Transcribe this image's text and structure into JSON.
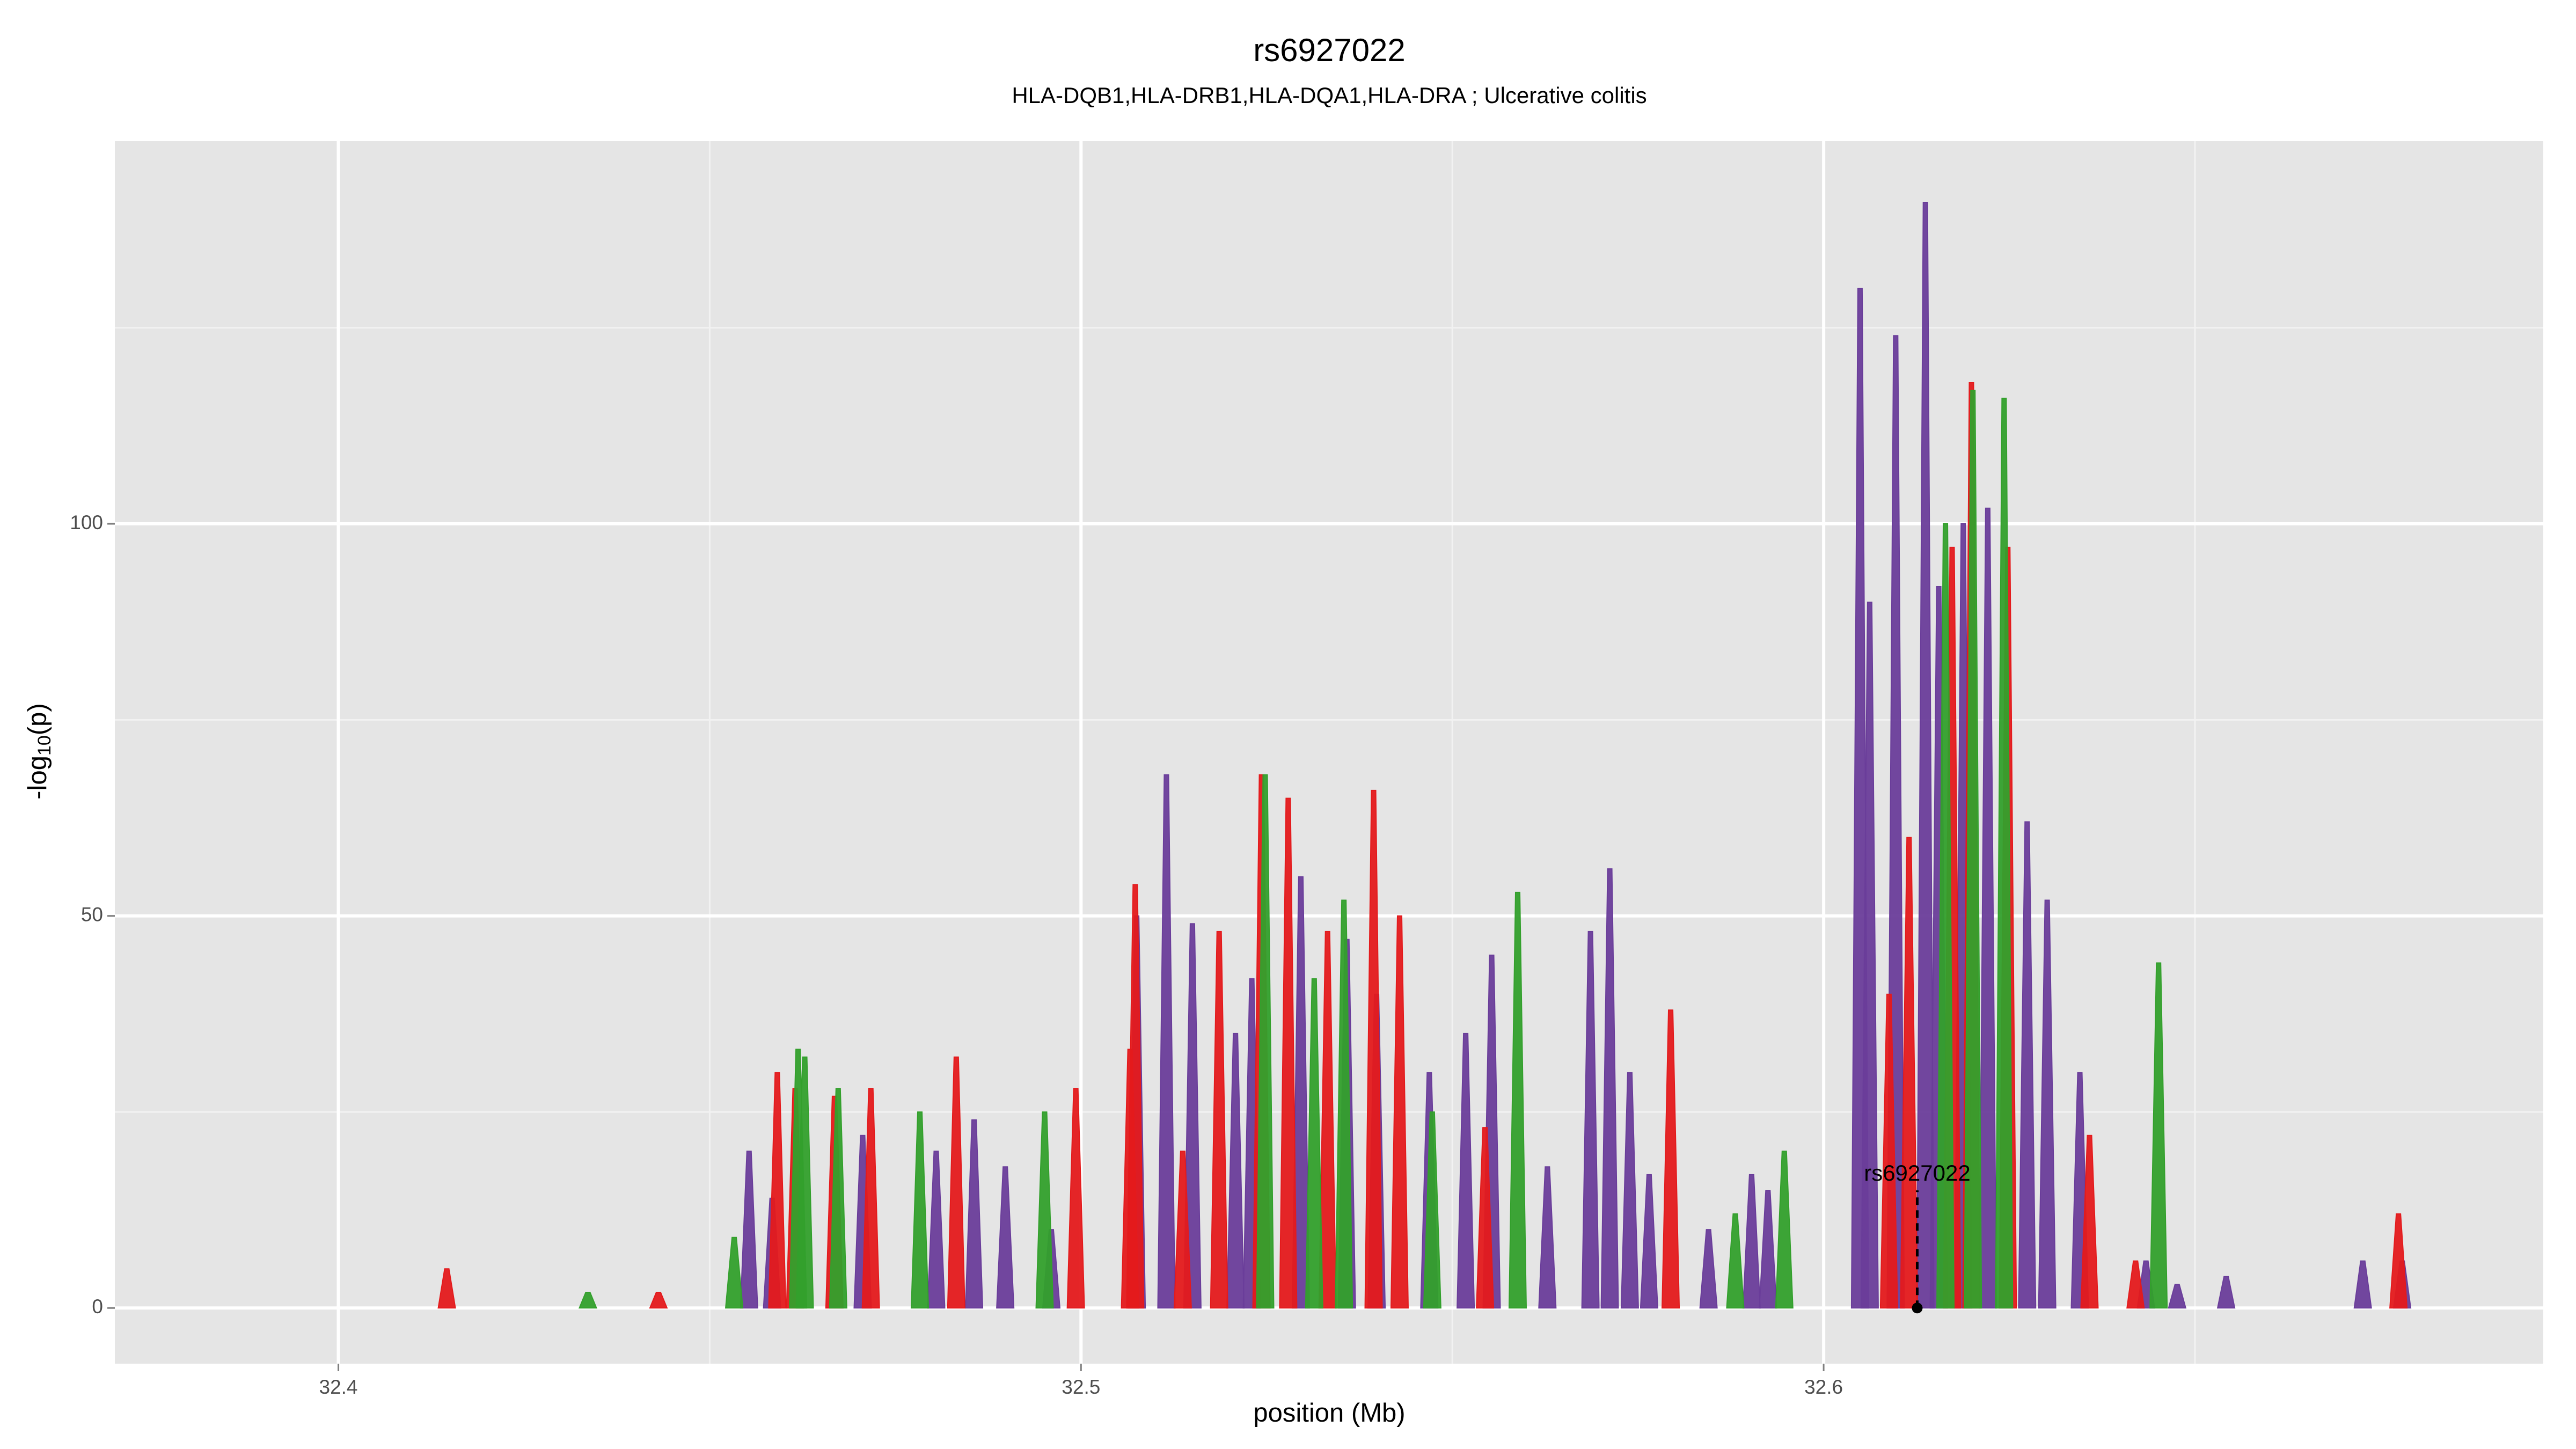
{
  "chart_data": {
    "type": "area",
    "title": "rs6927022",
    "subtitle": "HLA-DQB1,HLA-DRB1,HLA-DQA1,HLA-DRA ; Ulcerative colitis",
    "xlabel": "position (Mb)",
    "ylabel": {
      "prefix": "-log",
      "sub": "10",
      "suffix": "(p)"
    },
    "xlim": [
      32.3699,
      32.6969
    ],
    "ylim": [
      -7.1,
      148.8
    ],
    "xticks": [
      32.4,
      32.5,
      32.6
    ],
    "yticks": [
      0,
      50,
      100
    ],
    "x_minor_grid": [
      32.45,
      32.55,
      32.65
    ],
    "y_minor_grid": [
      25,
      75,
      125
    ],
    "grid": true,
    "series": [
      {
        "color": "#6a3d9a",
        "x": [
          32.4553,
          32.4584,
          32.4706,
          32.4805,
          32.4856,
          32.4898,
          32.496,
          32.5075,
          32.5115,
          32.515,
          32.5208,
          32.523,
          32.5296,
          32.5358,
          32.5398,
          32.5469,
          32.5518,
          32.5553,
          32.5628,
          32.5686,
          32.5712,
          32.5739,
          32.5765,
          32.5845,
          32.5903,
          32.5925,
          32.6049,
          32.6062,
          32.6097,
          32.6137,
          32.6155,
          32.6188,
          32.6221,
          32.6274,
          32.6301,
          32.6345,
          32.6434,
          32.6476,
          32.6542,
          32.6726,
          32.6779
        ],
        "values": [
          20,
          14,
          22,
          20,
          24,
          18,
          10,
          50,
          68,
          49,
          35,
          42,
          55,
          47,
          40,
          30,
          35,
          45,
          18,
          48,
          56,
          30,
          17,
          10,
          17,
          15,
          130,
          90,
          124,
          141,
          92,
          100,
          102,
          62,
          52,
          30,
          6,
          3,
          4,
          6,
          6
        ]
      },
      {
        "color": "#e41a1c",
        "x": [
          32.4146,
          32.4431,
          32.4591,
          32.4615,
          32.4668,
          32.4717,
          32.4832,
          32.4993,
          32.5066,
          32.5073,
          32.5137,
          32.5186,
          32.5243,
          32.5279,
          32.5332,
          32.5394,
          32.5429,
          32.5544,
          32.5794,
          32.6088,
          32.6115,
          32.6173,
          32.6199,
          32.6248,
          32.6358,
          32.642,
          32.6774
        ],
        "values": [
          5,
          2,
          30,
          28,
          27,
          28,
          32,
          28,
          33,
          54,
          20,
          48,
          68,
          65,
          48,
          66,
          50,
          23,
          38,
          40,
          60,
          97,
          118,
          97,
          22,
          6,
          12
        ]
      },
      {
        "color": "#33a02c",
        "x": [
          32.4336,
          32.4533,
          32.4619,
          32.4628,
          32.4673,
          32.4783,
          32.4951,
          32.5248,
          32.5314,
          32.5354,
          32.5473,
          32.5588,
          32.5881,
          32.5947,
          32.6164,
          32.6201,
          32.6243,
          32.6451
        ],
        "values": [
          2,
          9,
          33,
          32,
          28,
          25,
          25,
          68,
          42,
          52,
          25,
          53,
          12,
          20,
          100,
          117,
          116,
          44
        ]
      }
    ],
    "annotation": {
      "label": "rs6927022",
      "x": 32.6126,
      "label_y": 17,
      "line_y": [
        0,
        15
      ]
    }
  }
}
